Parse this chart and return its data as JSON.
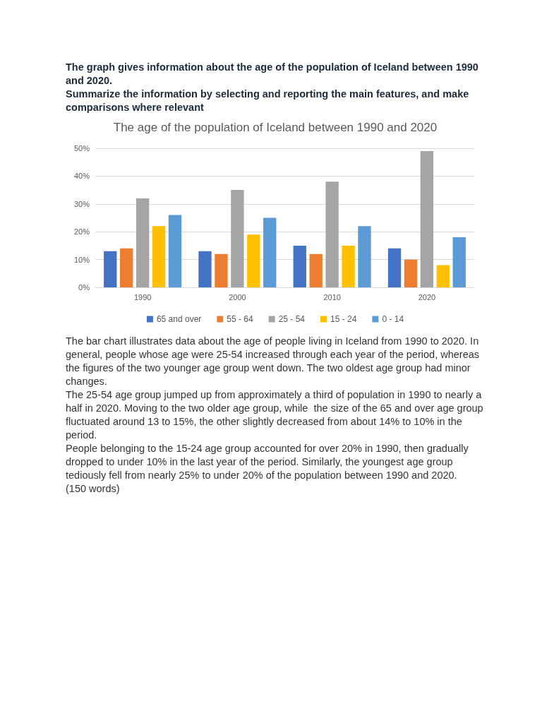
{
  "chart_data": {
    "type": "bar",
    "title": "The age of the population of Iceland between 1990 and 2020",
    "categories": [
      "1990",
      "2000",
      "2010",
      "2020"
    ],
    "series": [
      {
        "name": "65 and over",
        "color": "#4472c4",
        "values": [
          13,
          13,
          15,
          14
        ]
      },
      {
        "name": "55 - 64",
        "color": "#ed7d31",
        "values": [
          14,
          12,
          12,
          10
        ]
      },
      {
        "name": "25 - 54",
        "color": "#a5a5a5",
        "values": [
          32,
          35,
          38,
          49
        ]
      },
      {
        "name": "15 - 24",
        "color": "#ffc000",
        "values": [
          22,
          19,
          15,
          8
        ]
      },
      {
        "name": "0 - 14",
        "color": "#5b9bd5",
        "values": [
          26,
          25,
          22,
          18
        ]
      }
    ],
    "ylim": [
      0,
      50
    ],
    "yticks": [
      {
        "value": 0,
        "label": "0%"
      },
      {
        "value": 10,
        "label": "10%"
      },
      {
        "value": 20,
        "label": "20%"
      },
      {
        "value": 30,
        "label": "30%"
      },
      {
        "value": 40,
        "label": "40%"
      },
      {
        "value": 50,
        "label": "50%"
      }
    ],
    "grid": "y",
    "legend": "bottom",
    "annotations": [
      "The graph gives information about the age of the population of Iceland between 1990 and 2020.",
      "Summarize the information by selecting and reporting the main features, and make comparisons where relevant",
      "The bar chart illustrates data about the age of people living in Iceland from 1990 to 2020. In general, people whose age were 25-54 increased through each year of the period, whereas the figures of the two younger age group went down. The two oldest age group had minor changes.",
      "The 25-54 age group jumped up from approximately a third of population in 1990 to nearly a half in 2020. Moving to the two older age group, while  the size of the 65 and over age group fluctuated around 13 to 15%, the other slightly decreased from about 14% to 10% in the period.",
      "People belonging to the 15-24 age group accounted for over 20% in 1990, then gradually dropped to under 10% in the last year of the period. Similarly, the youngest age group tediously fell from nearly 25% to under 20% of the population between 1990 and 2020.",
      "(150 words)"
    ]
  }
}
